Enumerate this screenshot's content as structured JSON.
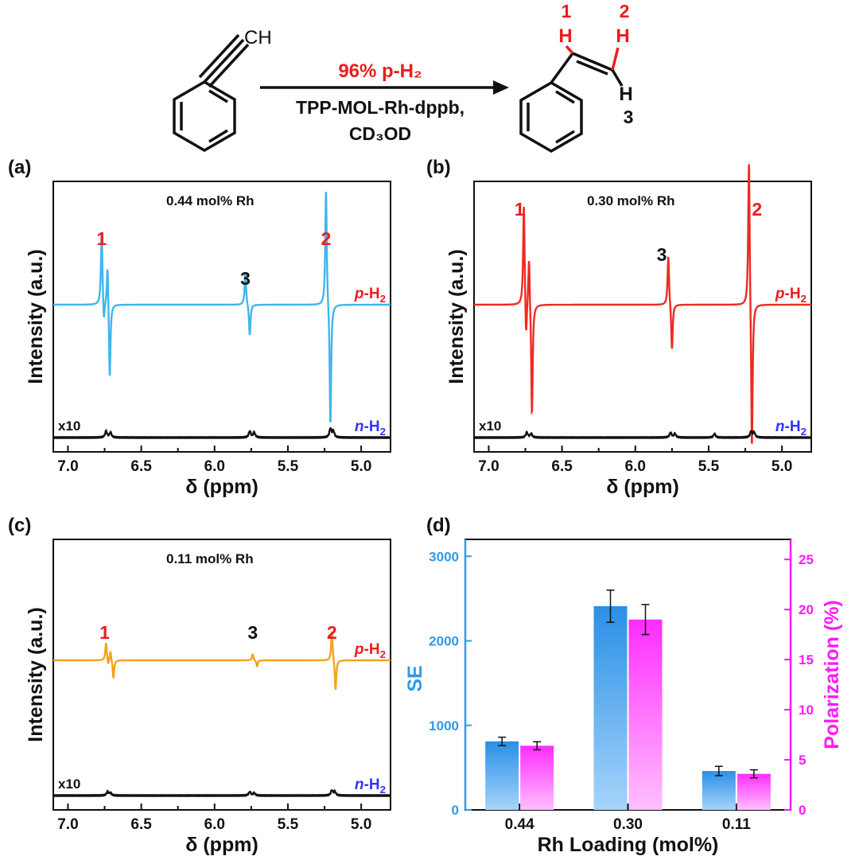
{
  "scheme": {
    "reactant_label": "CH",
    "arrow_top": "96% p-H₂",
    "arrow_bottom_1": "TPP-MOL-Rh-dppb,",
    "arrow_bottom_2": "CD₃OD",
    "product_h1_num": "1",
    "product_h2_num": "2",
    "product_h3_num": "3",
    "product_h": "H"
  },
  "colors": {
    "red": "#ee1c1c",
    "blue_text": "#3333ff",
    "cyan": "#3fb6ee",
    "red_trace": "#ee2a22",
    "orange": "#f5a11c",
    "se_axis": "#2e9be9",
    "pol_axis": "#ff19ff"
  },
  "chart_data": [
    {
      "type": "line",
      "panel": "(a)",
      "annotation": "0.44 mol% Rh",
      "xlabel": "δ (ppm)",
      "ylabel": "Intensity (a.u.)",
      "xlim": [
        7.1,
        4.8
      ],
      "xticks": [
        "7.0",
        "6.5",
        "6.0",
        "5.5",
        "5.0"
      ],
      "series": [
        {
          "name": "p-H₂",
          "color": "#3fb6ee",
          "peaks": [
            [
              6.77,
              0.5
            ],
            [
              6.755,
              -0.15
            ],
            [
              6.73,
              0.3
            ],
            [
              6.715,
              -0.52
            ],
            [
              5.79,
              0.22
            ],
            [
              5.76,
              -0.21
            ],
            [
              5.24,
              0.78
            ],
            [
              5.21,
              -0.82
            ]
          ]
        },
        {
          "name": "n-H₂",
          "scale_label": "x10",
          "color": "#111111",
          "peaks": [
            [
              6.74,
              0.05
            ],
            [
              6.71,
              0.04
            ],
            [
              5.76,
              0.05
            ],
            [
              5.73,
              0.04
            ],
            [
              5.21,
              0.07
            ],
            [
              5.19,
              0.05
            ]
          ]
        }
      ],
      "peak_labels": [
        {
          "text": "1",
          "x": 6.77,
          "color": "red"
        },
        {
          "text": "3",
          "x": 5.79,
          "color": "black"
        },
        {
          "text": "2",
          "x": 5.24,
          "color": "red"
        }
      ]
    },
    {
      "type": "line",
      "panel": "(b)",
      "annotation": "0.30 mol% Rh",
      "xlabel": "δ (ppm)",
      "ylabel": "Intensity (a.u.)",
      "xlim": [
        7.1,
        4.8
      ],
      "xticks": [
        "7.0",
        "6.5",
        "6.0",
        "5.5",
        "5.0"
      ],
      "series": [
        {
          "name": "p-H₂",
          "color": "#ee2a22",
          "peaks": [
            [
              6.76,
              0.62
            ],
            [
              6.745,
              -0.25
            ],
            [
              6.725,
              0.32
            ],
            [
              6.705,
              -0.68
            ],
            [
              5.775,
              0.3
            ],
            [
              5.75,
              -0.28
            ],
            [
              5.225,
              0.92
            ],
            [
              5.205,
              -0.92
            ]
          ]
        },
        {
          "name": "n-H₂",
          "scale_label": "x10",
          "color": "#111111",
          "peaks": [
            [
              6.74,
              0.04
            ],
            [
              6.71,
              0.03
            ],
            [
              5.76,
              0.04
            ],
            [
              5.73,
              0.03
            ],
            [
              5.46,
              0.03
            ],
            [
              5.21,
              0.05
            ],
            [
              5.19,
              0.04
            ]
          ]
        }
      ],
      "peak_labels": [
        {
          "text": "1",
          "x": 6.79,
          "color": "red"
        },
        {
          "text": "3",
          "x": 5.82,
          "color": "black"
        },
        {
          "text": "2",
          "x": 5.17,
          "color": "red"
        }
      ]
    },
    {
      "type": "line",
      "panel": "(c)",
      "annotation": "0.11 mol% Rh",
      "xlabel": "δ (ppm)",
      "ylabel": "Intensity (a.u.)",
      "xlim": [
        7.1,
        4.8
      ],
      "xticks": [
        "7.0",
        "6.5",
        "6.0",
        "5.5",
        "5.0"
      ],
      "series": [
        {
          "name": "p-H₂",
          "color": "#f5a11c",
          "peaks": [
            [
              6.74,
              0.15
            ],
            [
              6.725,
              -0.05
            ],
            [
              6.71,
              0.08
            ],
            [
              6.69,
              -0.15
            ],
            [
              5.74,
              0.05
            ],
            [
              5.71,
              -0.05
            ],
            [
              5.2,
              0.25
            ],
            [
              5.175,
              -0.26
            ]
          ]
        },
        {
          "name": "n-H₂",
          "scale_label": "x10",
          "color": "#111111",
          "peaks": [
            [
              6.73,
              0.03
            ],
            [
              6.71,
              0.02
            ],
            [
              5.76,
              0.03
            ],
            [
              5.73,
              0.02
            ],
            [
              5.2,
              0.04
            ],
            [
              5.18,
              0.03
            ]
          ]
        }
      ],
      "peak_labels": [
        {
          "text": "1",
          "x": 6.75,
          "color": "red"
        },
        {
          "text": "3",
          "x": 5.74,
          "color": "black"
        },
        {
          "text": "2",
          "x": 5.2,
          "color": "red"
        }
      ]
    },
    {
      "type": "bar",
      "panel": "(d)",
      "categories": [
        "0.44",
        "0.30",
        "0.11"
      ],
      "xlabel": "Rh Loading (mol%)",
      "series": [
        {
          "name": "SE",
          "axis": "left",
          "color": "#2e9be9",
          "values": [
            810,
            2410,
            460
          ],
          "errors": [
            50,
            190,
            55
          ]
        },
        {
          "name": "Polarization (%)",
          "axis": "right",
          "color": "#ff19ff",
          "values": [
            6.4,
            19.0,
            3.6
          ],
          "errors": [
            0.4,
            1.5,
            0.4
          ]
        }
      ],
      "ylabel_left": "SE",
      "ylabel_right": "Polarization (%)",
      "ylim_left": [
        0,
        3200
      ],
      "ylim_right": [
        0,
        27
      ],
      "yticks_left": [
        "0",
        "1000",
        "2000",
        "3000"
      ],
      "yticks_right": [
        "0",
        "5",
        "10",
        "15",
        "20",
        "25"
      ]
    }
  ]
}
